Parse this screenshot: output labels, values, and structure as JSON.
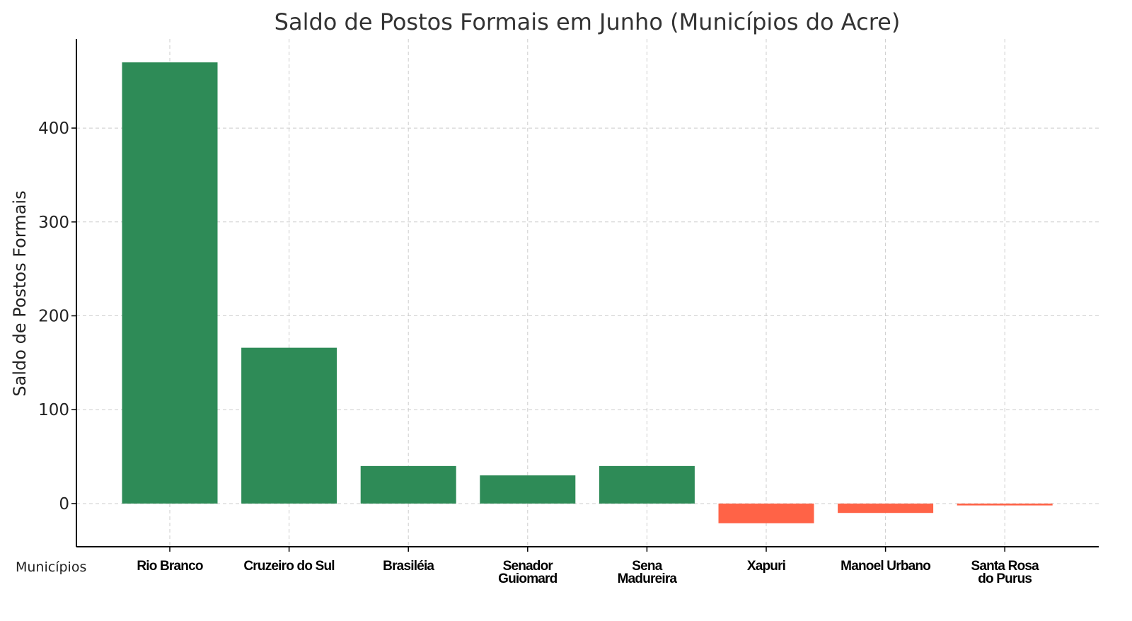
{
  "chart_data": {
    "type": "bar",
    "title": "Saldo de Postos Formais em Junho (Municípios do Acre)",
    "xlabel": "Municípios",
    "ylabel": "Saldo de Postos Formais",
    "categories": [
      [
        "Rio Branco"
      ],
      [
        "Cruzeiro do Sul"
      ],
      [
        "Brasiléia"
      ],
      [
        "Senador",
        "Guiomard"
      ],
      [
        "Sena",
        "Madureira"
      ],
      [
        "Xapuri"
      ],
      [
        "Manoel Urbano"
      ],
      [
        "Santa Rosa",
        "do Purus"
      ]
    ],
    "values": [
      470,
      166,
      40,
      30,
      40,
      -21,
      -10,
      -2
    ],
    "colors": {
      "positive": "#2e8b57",
      "negative": "#ff6347"
    },
    "yticks": [
      0,
      100,
      200,
      300,
      400
    ],
    "ylim": [
      -46,
      495
    ],
    "grid": true
  }
}
